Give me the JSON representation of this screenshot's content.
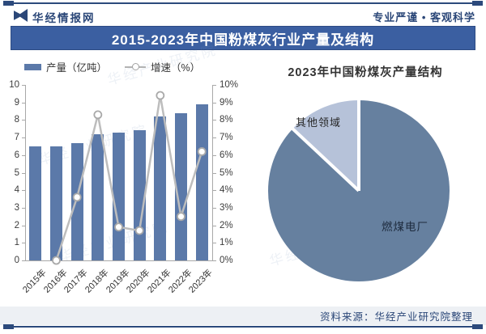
{
  "header": {
    "logo_text": "华经情报网",
    "slogan": "专业严谨 • 客观科学"
  },
  "title_bar": {
    "title": "2015-2023年中国粉煤灰行业产量及结构"
  },
  "legend": {
    "bar_label": "产量（亿吨）",
    "line_label": "增速（%）"
  },
  "watermark": {
    "text": "华经产业研究院"
  },
  "footer": {
    "source": "资料来源：华经产业研究院整理"
  },
  "colors": {
    "navy": "#2b4778",
    "title_bar_bg": "#3b5fa1",
    "bar_fill": "#5b79a9",
    "line_gray": "#bdbdbd",
    "marker_stroke": "#a9a9a9",
    "pie_dark": "#66809f",
    "pie_light": "#b6c2d9",
    "axis_gray": "#a8a8a8",
    "footer_bg": "#edf0f4"
  },
  "chart_data": [
    {
      "type": "bar",
      "title": "2015-2023年中国粉煤灰行业产量及增速",
      "categories": [
        "2015年",
        "2016年",
        "2017年",
        "2018年",
        "2019年",
        "2020年",
        "2021年",
        "2022年",
        "2023年"
      ],
      "series": [
        {
          "name": "产量（亿吨）",
          "type": "bar",
          "axis": "left",
          "values": [
            6.5,
            6.5,
            6.7,
            7.2,
            7.3,
            7.4,
            8.2,
            8.4,
            8.9
          ]
        },
        {
          "name": "增速（%）",
          "type": "line",
          "axis": "right",
          "values": [
            null,
            0.0,
            3.6,
            8.3,
            1.9,
            1.7,
            9.4,
            2.5,
            6.2
          ]
        }
      ],
      "left_axis": {
        "min": 0,
        "max": 10,
        "ticks": [
          "0",
          "1",
          "2",
          "3",
          "4",
          "5",
          "6",
          "7",
          "8",
          "9",
          "10"
        ],
        "label": "亿吨"
      },
      "right_axis": {
        "min": 0,
        "max": 10,
        "ticks": [
          "0%",
          "1%",
          "2%",
          "3%",
          "4%",
          "5%",
          "6%",
          "7%",
          "8%",
          "9%",
          "10%"
        ],
        "label": "%"
      },
      "grid": false,
      "legend_position": "top-left"
    },
    {
      "type": "pie",
      "title": "2023年中国粉煤灰产量结构",
      "labels": [
        "燃煤电厂",
        "其他领域"
      ],
      "values": [
        87,
        13
      ],
      "start_angle_deg": 0,
      "direction": "clockwise-large-slice-first"
    }
  ]
}
